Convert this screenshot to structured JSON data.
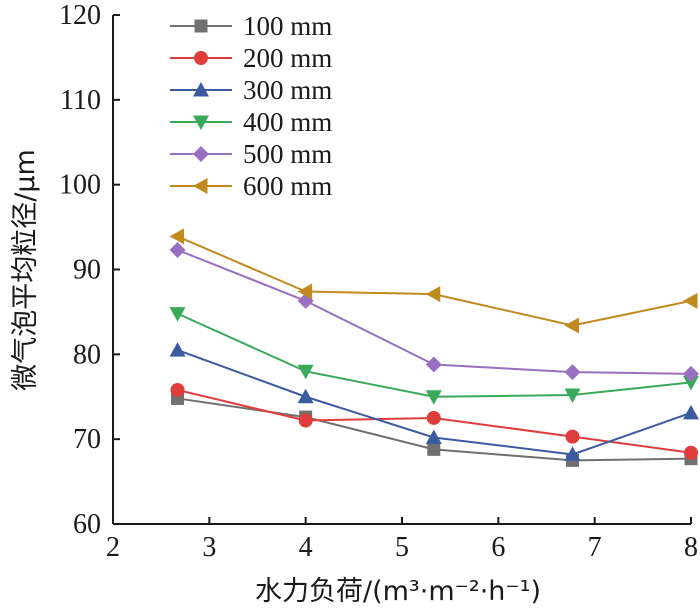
{
  "chart_data": {
    "type": "line",
    "xlabel": "水力负荷/(m³·m⁻²·h⁻¹)",
    "ylabel": "微气泡平均粒径/μm",
    "xlim": [
      2,
      8
    ],
    "ylim": [
      60,
      120
    ],
    "xticks": [
      "2",
      "3",
      "4",
      "5",
      "6",
      "7",
      "8"
    ],
    "yticks": [
      "60",
      "70",
      "80",
      "90",
      "100",
      "110",
      "120"
    ],
    "x": [
      2.67,
      4.0,
      5.33,
      6.77,
      8.0
    ],
    "legend_position": "top-left",
    "grid": false,
    "series": [
      {
        "name": "100 mm",
        "color": "#707070",
        "marker": "square",
        "values": [
          74.8,
          72.6,
          68.8,
          67.5,
          67.7
        ]
      },
      {
        "name": "200 mm",
        "color": "#e03c3c",
        "marker": "circle",
        "values": [
          75.8,
          72.2,
          72.5,
          70.3,
          68.4
        ]
      },
      {
        "name": "300 mm",
        "color": "#3b5aa0",
        "marker": "triangle-up",
        "values": [
          80.5,
          75.0,
          70.2,
          68.2,
          73.1
        ]
      },
      {
        "name": "400 mm",
        "color": "#3aaa5a",
        "marker": "triangle-down",
        "values": [
          84.8,
          78.0,
          75.0,
          75.2,
          76.7
        ]
      },
      {
        "name": "500 mm",
        "color": "#9b6fc0",
        "marker": "diamond",
        "values": [
          92.3,
          86.3,
          78.8,
          77.9,
          77.7
        ]
      },
      {
        "name": "600 mm",
        "color": "#c08a1e",
        "marker": "triangle-left",
        "values": [
          93.9,
          87.4,
          87.1,
          83.4,
          86.3
        ]
      }
    ]
  }
}
